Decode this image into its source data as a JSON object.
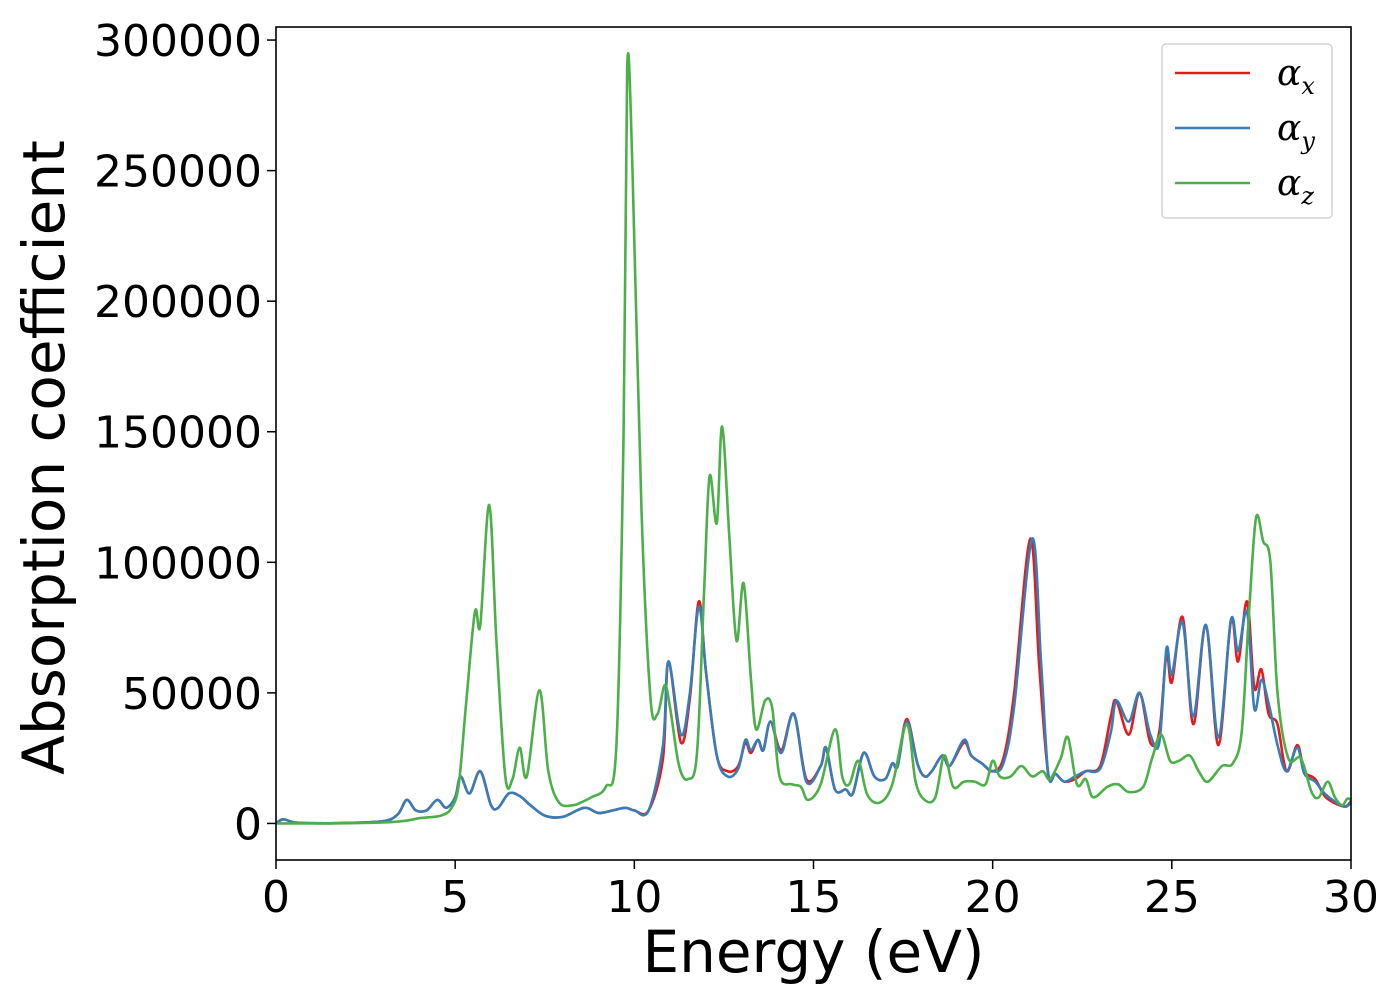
{
  "chart_data": {
    "type": "line",
    "title": "",
    "xlabel": "Energy (eV)",
    "ylabel": "Absorption coefficient",
    "xlim": [
      0,
      30
    ],
    "ylim": [
      -14000,
      305000
    ],
    "xticks": [
      0,
      5,
      10,
      15,
      20,
      25,
      30
    ],
    "yticks": [
      0,
      50000,
      100000,
      150000,
      200000,
      250000,
      300000
    ],
    "grid": false,
    "legend_position": "top-right",
    "series": [
      {
        "name": "α",
        "subscript": "x",
        "color": "#e41a1c",
        "points": [
          [
            0,
            0
          ],
          [
            0.2,
            1600
          ],
          [
            0.5,
            400
          ],
          [
            1,
            100
          ],
          [
            2,
            200
          ],
          [
            3,
            900
          ],
          [
            3.4,
            3500
          ],
          [
            3.65,
            9000
          ],
          [
            3.9,
            5000
          ],
          [
            4.2,
            5000
          ],
          [
            4.5,
            9000
          ],
          [
            4.75,
            6000
          ],
          [
            5.0,
            10000
          ],
          [
            5.15,
            18000
          ],
          [
            5.4,
            11500
          ],
          [
            5.7,
            20000
          ],
          [
            6.0,
            7000
          ],
          [
            6.2,
            6000
          ],
          [
            6.5,
            11500
          ],
          [
            6.8,
            10500
          ],
          [
            7.1,
            7000
          ],
          [
            7.5,
            3000
          ],
          [
            8.0,
            2500
          ],
          [
            8.6,
            6000
          ],
          [
            9.0,
            4000
          ],
          [
            9.4,
            5000
          ],
          [
            9.75,
            6000
          ],
          [
            10.0,
            5000
          ],
          [
            10.4,
            5000
          ],
          [
            10.8,
            25000
          ],
          [
            10.95,
            62000
          ],
          [
            11.3,
            31000
          ],
          [
            11.55,
            48000
          ],
          [
            11.8,
            85000
          ],
          [
            12.0,
            58000
          ],
          [
            12.3,
            26000
          ],
          [
            12.6,
            20000
          ],
          [
            12.9,
            22000
          ],
          [
            13.1,
            31000
          ],
          [
            13.25,
            27000
          ],
          [
            13.45,
            32000
          ],
          [
            13.6,
            28000
          ],
          [
            13.8,
            39000
          ],
          [
            14.1,
            28000
          ],
          [
            14.45,
            42000
          ],
          [
            14.8,
            17000
          ],
          [
            15.2,
            22000
          ],
          [
            15.35,
            29000
          ],
          [
            15.6,
            13000
          ],
          [
            15.9,
            13000
          ],
          [
            16.1,
            11500
          ],
          [
            16.4,
            27000
          ],
          [
            16.7,
            18000
          ],
          [
            17.0,
            17000
          ],
          [
            17.2,
            23000
          ],
          [
            17.35,
            22000
          ],
          [
            17.6,
            40000
          ],
          [
            17.9,
            23000
          ],
          [
            18.1,
            18000
          ],
          [
            18.3,
            20000
          ],
          [
            18.6,
            26000
          ],
          [
            18.8,
            22000
          ],
          [
            19.2,
            31000
          ],
          [
            19.4,
            26000
          ],
          [
            19.7,
            23000
          ],
          [
            20.0,
            20000
          ],
          [
            20.3,
            25000
          ],
          [
            20.6,
            50000
          ],
          [
            21.05,
            109000
          ],
          [
            21.3,
            60000
          ],
          [
            21.55,
            19000
          ],
          [
            21.75,
            19000
          ],
          [
            22.0,
            16000
          ],
          [
            22.3,
            17000
          ],
          [
            22.6,
            20000
          ],
          [
            23.0,
            22000
          ],
          [
            23.3,
            41000
          ],
          [
            23.45,
            47000
          ],
          [
            23.8,
            34000
          ],
          [
            24.1,
            50000
          ],
          [
            24.4,
            31000
          ],
          [
            24.65,
            35000
          ],
          [
            24.85,
            65000
          ],
          [
            25.0,
            54000
          ],
          [
            25.3,
            79000
          ],
          [
            25.6,
            38000
          ],
          [
            25.95,
            76000
          ],
          [
            26.3,
            30000
          ],
          [
            26.65,
            78000
          ],
          [
            26.85,
            62000
          ],
          [
            27.1,
            85000
          ],
          [
            27.3,
            52000
          ],
          [
            27.5,
            59000
          ],
          [
            27.7,
            42000
          ],
          [
            27.95,
            38000
          ],
          [
            28.2,
            20000
          ],
          [
            28.5,
            30000
          ],
          [
            28.7,
            20000
          ],
          [
            29.0,
            17000
          ],
          [
            29.3,
            10000
          ],
          [
            29.8,
            6500
          ],
          [
            30.0,
            8500
          ]
        ]
      },
      {
        "name": "α",
        "subscript": "y",
        "color": "#377eb8",
        "points": [
          [
            0,
            0
          ],
          [
            0.2,
            1600
          ],
          [
            0.5,
            400
          ],
          [
            1,
            100
          ],
          [
            2,
            200
          ],
          [
            3,
            900
          ],
          [
            3.4,
            3500
          ],
          [
            3.65,
            9000
          ],
          [
            3.9,
            5000
          ],
          [
            4.2,
            5000
          ],
          [
            4.5,
            9000
          ],
          [
            4.75,
            6000
          ],
          [
            5.0,
            10000
          ],
          [
            5.15,
            18000
          ],
          [
            5.4,
            11500
          ],
          [
            5.7,
            20000
          ],
          [
            6.0,
            7000
          ],
          [
            6.2,
            6000
          ],
          [
            6.5,
            11500
          ],
          [
            6.8,
            10500
          ],
          [
            7.1,
            7000
          ],
          [
            7.5,
            3000
          ],
          [
            8.0,
            2500
          ],
          [
            8.6,
            6000
          ],
          [
            9.0,
            4000
          ],
          [
            9.4,
            5000
          ],
          [
            9.75,
            6000
          ],
          [
            10.0,
            5000
          ],
          [
            10.4,
            5000
          ],
          [
            10.8,
            30000
          ],
          [
            10.95,
            62000
          ],
          [
            11.3,
            34000
          ],
          [
            11.55,
            50000
          ],
          [
            11.8,
            83000
          ],
          [
            12.0,
            58000
          ],
          [
            12.3,
            26000
          ],
          [
            12.6,
            18000
          ],
          [
            12.9,
            21000
          ],
          [
            13.1,
            32000
          ],
          [
            13.25,
            28000
          ],
          [
            13.45,
            32000
          ],
          [
            13.6,
            28000
          ],
          [
            13.8,
            39000
          ],
          [
            14.1,
            27000
          ],
          [
            14.45,
            42000
          ],
          [
            14.8,
            16000
          ],
          [
            15.2,
            22000
          ],
          [
            15.35,
            29000
          ],
          [
            15.6,
            13000
          ],
          [
            15.9,
            13000
          ],
          [
            16.1,
            11500
          ],
          [
            16.4,
            27000
          ],
          [
            16.7,
            18000
          ],
          [
            17.0,
            17000
          ],
          [
            17.2,
            23000
          ],
          [
            17.35,
            22000
          ],
          [
            17.6,
            39000
          ],
          [
            17.9,
            23000
          ],
          [
            18.1,
            18000
          ],
          [
            18.3,
            20000
          ],
          [
            18.6,
            26000
          ],
          [
            18.8,
            22000
          ],
          [
            19.2,
            32000
          ],
          [
            19.4,
            26000
          ],
          [
            19.7,
            23000
          ],
          [
            20.0,
            20000
          ],
          [
            20.3,
            23000
          ],
          [
            20.6,
            45000
          ],
          [
            21.1,
            109000
          ],
          [
            21.35,
            62000
          ],
          [
            21.55,
            19000
          ],
          [
            21.75,
            19000
          ],
          [
            22.0,
            16000
          ],
          [
            22.3,
            18000
          ],
          [
            22.6,
            20000
          ],
          [
            23.0,
            21000
          ],
          [
            23.3,
            35000
          ],
          [
            23.45,
            47000
          ],
          [
            23.8,
            39000
          ],
          [
            24.1,
            50000
          ],
          [
            24.4,
            34000
          ],
          [
            24.65,
            31000
          ],
          [
            24.85,
            67000
          ],
          [
            25.0,
            57000
          ],
          [
            25.3,
            77000
          ],
          [
            25.6,
            41000
          ],
          [
            25.95,
            76000
          ],
          [
            26.3,
            33000
          ],
          [
            26.65,
            78000
          ],
          [
            26.85,
            66000
          ],
          [
            27.1,
            81000
          ],
          [
            27.3,
            44000
          ],
          [
            27.5,
            55000
          ],
          [
            27.7,
            46000
          ],
          [
            27.95,
            30000
          ],
          [
            28.2,
            20000
          ],
          [
            28.5,
            29000
          ],
          [
            28.7,
            19000
          ],
          [
            29.0,
            16000
          ],
          [
            29.3,
            11000
          ],
          [
            29.8,
            6500
          ],
          [
            30.0,
            8000
          ]
        ]
      },
      {
        "name": "α",
        "subscript": "z",
        "color": "#4daf4a",
        "points": [
          [
            0,
            0
          ],
          [
            1,
            0
          ],
          [
            2,
            100
          ],
          [
            3,
            400
          ],
          [
            3.6,
            1000
          ],
          [
            4.0,
            2000
          ],
          [
            4.6,
            3000
          ],
          [
            4.9,
            6000
          ],
          [
            5.1,
            15000
          ],
          [
            5.3,
            45000
          ],
          [
            5.55,
            81000
          ],
          [
            5.7,
            76000
          ],
          [
            5.95,
            122000
          ],
          [
            6.15,
            70000
          ],
          [
            6.4,
            18000
          ],
          [
            6.6,
            17000
          ],
          [
            6.8,
            29000
          ],
          [
            7.0,
            18000
          ],
          [
            7.35,
            51000
          ],
          [
            7.6,
            20000
          ],
          [
            7.9,
            8000
          ],
          [
            8.3,
            7000
          ],
          [
            8.5,
            8000
          ],
          [
            8.8,
            10000
          ],
          [
            9.2,
            14000
          ],
          [
            9.5,
            30000
          ],
          [
            9.7,
            150000
          ],
          [
            9.8,
            290000
          ],
          [
            9.95,
            250000
          ],
          [
            10.2,
            120000
          ],
          [
            10.45,
            48000
          ],
          [
            10.65,
            42000
          ],
          [
            10.85,
            53000
          ],
          [
            11.0,
            44000
          ],
          [
            11.25,
            22000
          ],
          [
            11.5,
            17000
          ],
          [
            11.75,
            27000
          ],
          [
            11.95,
            90000
          ],
          [
            12.1,
            133000
          ],
          [
            12.3,
            115000
          ],
          [
            12.45,
            152000
          ],
          [
            12.65,
            110000
          ],
          [
            12.85,
            70000
          ],
          [
            13.05,
            92000
          ],
          [
            13.25,
            56000
          ],
          [
            13.4,
            36000
          ],
          [
            13.65,
            47000
          ],
          [
            13.85,
            44000
          ],
          [
            14.05,
            18000
          ],
          [
            14.4,
            15000
          ],
          [
            14.65,
            14000
          ],
          [
            14.85,
            9000
          ],
          [
            15.2,
            15000
          ],
          [
            15.6,
            36000
          ],
          [
            15.8,
            18000
          ],
          [
            16.0,
            15000
          ],
          [
            16.25,
            24000
          ],
          [
            16.5,
            11000
          ],
          [
            16.85,
            8000
          ],
          [
            17.2,
            15000
          ],
          [
            17.6,
            38000
          ],
          [
            17.85,
            16000
          ],
          [
            18.1,
            9000
          ],
          [
            18.4,
            10000
          ],
          [
            18.65,
            26000
          ],
          [
            18.9,
            14000
          ],
          [
            19.2,
            16000
          ],
          [
            19.5,
            16000
          ],
          [
            19.8,
            15000
          ],
          [
            20.0,
            24000
          ],
          [
            20.2,
            18000
          ],
          [
            20.5,
            18000
          ],
          [
            20.8,
            22000
          ],
          [
            21.1,
            18000
          ],
          [
            21.4,
            20000
          ],
          [
            21.6,
            17000
          ],
          [
            21.9,
            25000
          ],
          [
            22.1,
            33000
          ],
          [
            22.35,
            15000
          ],
          [
            22.6,
            17000
          ],
          [
            22.8,
            10000
          ],
          [
            23.2,
            14000
          ],
          [
            23.5,
            15000
          ],
          [
            23.8,
            12000
          ],
          [
            24.2,
            14000
          ],
          [
            24.45,
            25000
          ],
          [
            24.7,
            34000
          ],
          [
            24.95,
            24000
          ],
          [
            25.2,
            24000
          ],
          [
            25.5,
            26000
          ],
          [
            25.75,
            20000
          ],
          [
            26.0,
            16000
          ],
          [
            26.4,
            22000
          ],
          [
            26.7,
            23000
          ],
          [
            26.95,
            35000
          ],
          [
            27.15,
            80000
          ],
          [
            27.35,
            117000
          ],
          [
            27.55,
            108000
          ],
          [
            27.75,
            100000
          ],
          [
            27.95,
            50000
          ],
          [
            28.25,
            25000
          ],
          [
            28.6,
            25000
          ],
          [
            28.9,
            12000
          ],
          [
            29.1,
            10000
          ],
          [
            29.35,
            16000
          ],
          [
            29.55,
            10000
          ],
          [
            29.75,
            7000
          ],
          [
            29.9,
            9500
          ],
          [
            30.0,
            9000
          ]
        ]
      }
    ]
  }
}
